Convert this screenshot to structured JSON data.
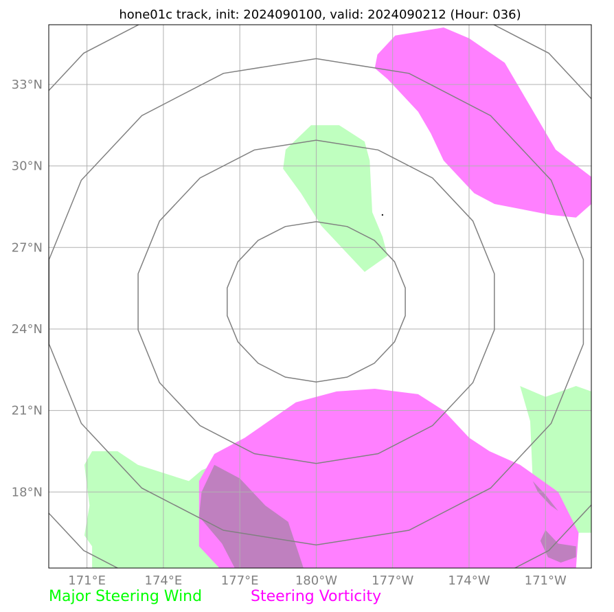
{
  "title": "hone01c track, init: 2024090100, valid: 2024090212 (Hour: 036)",
  "map": {
    "projection": "plate-carree",
    "lon_range": [
      169.5,
      190.8
    ],
    "lat_range": [
      15.2,
      35.2
    ],
    "lon_ticks": [
      {
        "lon": 171,
        "label": "171°E"
      },
      {
        "lon": 174,
        "label": "174°E"
      },
      {
        "lon": 177,
        "label": "177°E"
      },
      {
        "lon": 180,
        "label": "180°W"
      },
      {
        "lon": 183,
        "label": "177°W"
      },
      {
        "lon": 186,
        "label": "174°W"
      },
      {
        "lon": 189,
        "label": "171°W"
      }
    ],
    "lat_ticks": [
      {
        "lat": 33,
        "label": "33°N"
      },
      {
        "lat": 30,
        "label": "30°N"
      },
      {
        "lat": 27,
        "label": "27°N"
      },
      {
        "lat": 24,
        "label": "24°N"
      },
      {
        "lat": 21,
        "label": "21°N"
      },
      {
        "lat": 18,
        "label": "18°N"
      }
    ],
    "grid": true,
    "grid_color": "#b0b0b0",
    "range_rings": {
      "center": [
        180,
        25.0
      ],
      "color": "#808080",
      "radii_lat": [
        2.95,
        5.95,
        8.95,
        11.95
      ],
      "radii_lon": [
        3.55,
        7.1,
        10.65,
        14.2
      ]
    },
    "track_point": {
      "lon": 182.6,
      "lat": 28.2
    },
    "legend": {
      "wind": {
        "label": "Major Steering Wind",
        "color": "#00ff00",
        "fill": "#bfffbf"
      },
      "vorticity": {
        "label": "Steering Vorticity",
        "color": "#ff00ff",
        "fill": "#ff80ff"
      },
      "overlap_fill": "#bf80bf"
    },
    "regions": {
      "wind": [
        [
          [
            178.7,
            29.9
          ],
          [
            178.8,
            30.6
          ],
          [
            179.8,
            31.5
          ],
          [
            180.9,
            31.5
          ],
          [
            181.9,
            30.9
          ],
          [
            182.1,
            30.2
          ],
          [
            182.2,
            28.3
          ],
          [
            182.6,
            27.4
          ],
          [
            182.8,
            26.7
          ],
          [
            181.9,
            26.1
          ],
          [
            181.3,
            26.7
          ],
          [
            180.2,
            27.8
          ],
          [
            179.4,
            29.0
          ]
        ],
        [
          [
            170.9,
            19.0
          ],
          [
            171.2,
            19.5
          ],
          [
            172.2,
            19.5
          ],
          [
            173.0,
            19.0
          ],
          [
            175.0,
            18.4
          ],
          [
            175.5,
            18.8
          ],
          [
            176.0,
            19.0
          ],
          [
            175.5,
            18.0
          ],
          [
            175.4,
            17.1
          ],
          [
            176.3,
            16.1
          ],
          [
            176.8,
            15.2
          ],
          [
            171.2,
            15.2
          ],
          [
            171.2,
            16.0
          ],
          [
            170.9,
            16.4
          ],
          [
            171.1,
            17.5
          ]
        ],
        [
          [
            188.4,
            20.6
          ],
          [
            188.0,
            21.9
          ],
          [
            189.0,
            21.5
          ],
          [
            190.2,
            21.9
          ],
          [
            190.8,
            21.7
          ],
          [
            190.8,
            16.5
          ],
          [
            189.6,
            16.5
          ],
          [
            189.2,
            17.5
          ],
          [
            188.5,
            18.4
          ]
        ]
      ],
      "vorticity": [
        [
          [
            182.4,
            34.1
          ],
          [
            183.1,
            34.8
          ],
          [
            185.0,
            35.1
          ],
          [
            186.0,
            34.7
          ],
          [
            187.4,
            33.8
          ],
          [
            188.4,
            32.2
          ],
          [
            189.4,
            30.6
          ],
          [
            190.8,
            29.6
          ],
          [
            190.8,
            28.6
          ],
          [
            190.2,
            28.1
          ],
          [
            189.2,
            28.2
          ],
          [
            188.1,
            28.4
          ],
          [
            187.0,
            28.6
          ],
          [
            186.2,
            29.0
          ],
          [
            185.6,
            29.6
          ],
          [
            185.0,
            30.2
          ],
          [
            184.5,
            31.2
          ],
          [
            184.0,
            32.0
          ],
          [
            183.4,
            32.6
          ],
          [
            182.8,
            33.2
          ],
          [
            182.3,
            33.6
          ]
        ],
        [
          [
            175.4,
            18.4
          ],
          [
            176.0,
            19.4
          ],
          [
            177.2,
            20.0
          ],
          [
            179.2,
            21.3
          ],
          [
            180.8,
            21.7
          ],
          [
            182.3,
            21.8
          ],
          [
            184.0,
            21.6
          ],
          [
            185.0,
            21.0
          ],
          [
            186.0,
            20.0
          ],
          [
            186.8,
            19.5
          ],
          [
            188.0,
            19.0
          ],
          [
            189.5,
            18.0
          ],
          [
            190.3,
            16.5
          ],
          [
            190.2,
            15.2
          ],
          [
            176.2,
            15.2
          ],
          [
            175.4,
            16.0
          ]
        ]
      ],
      "overlap": [
        [
          [
            176.0,
            19.0
          ],
          [
            175.5,
            18.0
          ],
          [
            175.4,
            17.1
          ],
          [
            176.3,
            16.1
          ],
          [
            176.8,
            15.2
          ],
          [
            179.5,
            15.2
          ],
          [
            178.9,
            16.9
          ],
          [
            178.0,
            17.5
          ],
          [
            177.0,
            18.5
          ]
        ],
        [
          [
            188.5,
            18.4
          ],
          [
            189.0,
            17.9
          ],
          [
            189.5,
            17.3
          ],
          [
            189.2,
            17.5
          ],
          [
            188.7,
            18.0
          ]
        ],
        [
          [
            189.0,
            16.6
          ],
          [
            189.5,
            16.1
          ],
          [
            190.2,
            16.0
          ],
          [
            190.2,
            15.6
          ],
          [
            189.6,
            15.4
          ],
          [
            189.1,
            15.6
          ],
          [
            188.8,
            16.2
          ]
        ]
      ]
    }
  }
}
